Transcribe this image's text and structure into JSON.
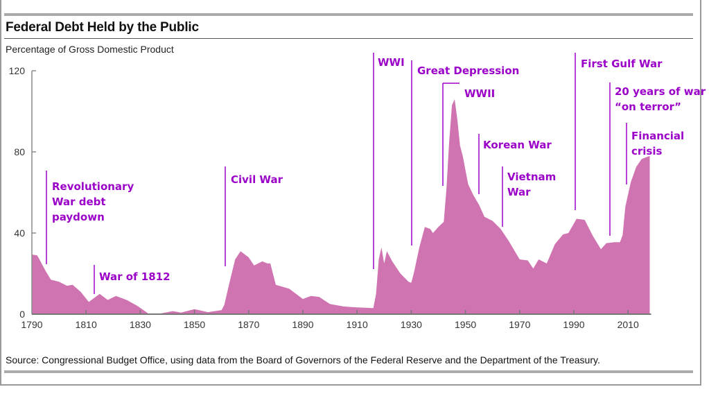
{
  "chart_data": {
    "type": "area",
    "title": "Federal Debt Held by the Public",
    "subtitle": "Percentage of Gross Domestic Product",
    "xlabel": "",
    "ylabel": "Percentage of Gross Domestic Product",
    "xlim": [
      1790,
      2018
    ],
    "ylim": [
      0,
      120
    ],
    "yticks": [
      0,
      40,
      80,
      120
    ],
    "xticks": [
      1790,
      1810,
      1830,
      1850,
      1870,
      1890,
      1910,
      1930,
      1950,
      1970,
      1990,
      2010
    ],
    "grid": false,
    "fill_color": "#cf74b0",
    "annotation_color": "#9b00c8",
    "series": [
      {
        "name": "Federal Debt Held by the Public (% of GDP)",
        "x": [
          1790,
          1792,
          1795,
          1797,
          1800,
          1803,
          1805,
          1808,
          1811,
          1813,
          1815,
          1818,
          1821,
          1825,
          1829,
          1833,
          1837,
          1842,
          1845,
          1850,
          1855,
          1860,
          1861,
          1863,
          1865,
          1867,
          1870,
          1872,
          1875,
          1877,
          1878,
          1880,
          1885,
          1890,
          1893,
          1896,
          1900,
          1905,
          1910,
          1916,
          1917,
          1918,
          1919,
          1920,
          1921,
          1923,
          1926,
          1929,
          1930,
          1931,
          1933,
          1935,
          1937,
          1938,
          1940,
          1942,
          1943,
          1944,
          1945,
          1946,
          1947,
          1948,
          1949,
          1951,
          1953,
          1955,
          1957,
          1960,
          1963,
          1966,
          1970,
          1973,
          1975,
          1977,
          1980,
          1983,
          1986,
          1988,
          1991,
          1994,
          1997,
          2000,
          2002,
          2005,
          2007,
          2008,
          2009,
          2011,
          2013,
          2015,
          2017,
          2018
        ],
        "values": [
          29.4,
          29,
          21.5,
          17,
          16,
          14,
          14.5,
          11,
          6,
          8,
          10,
          7,
          9,
          7,
          4,
          0.3,
          0.2,
          1.5,
          0.8,
          2.5,
          1,
          2,
          4.5,
          16,
          27,
          31,
          28,
          24,
          26,
          25,
          25,
          14.5,
          12.5,
          7.5,
          9,
          8.5,
          5,
          3.8,
          3.3,
          3,
          10,
          27,
          33,
          25,
          31,
          26,
          20,
          16,
          15.5,
          20.5,
          33,
          43,
          42,
          40,
          43,
          45.5,
          62,
          85,
          103,
          106,
          96,
          83,
          78,
          64,
          58.5,
          54,
          48,
          46,
          42,
          36,
          27,
          26.5,
          22.5,
          27,
          25,
          34.5,
          39.3,
          40,
          47,
          46.5,
          38.6,
          32,
          35,
          35.5,
          35.5,
          39,
          53,
          65,
          72.5,
          76.5,
          77.5,
          78
        ]
      }
    ],
    "annotations": [
      {
        "text_lines": [
          "Revolutionary",
          "War debt",
          "paydown"
        ],
        "year": 1795
      },
      {
        "text_lines": [
          "War of 1812"
        ],
        "year": 1812
      },
      {
        "text_lines": [
          "Civil War"
        ],
        "year": 1861
      },
      {
        "text_lines": [
          "WWI"
        ],
        "year": 1917
      },
      {
        "text_lines": [
          "Great Depression"
        ],
        "year": 1930
      },
      {
        "text_lines": [
          "WWII"
        ],
        "year": 1941
      },
      {
        "text_lines": [
          "Korean War"
        ],
        "year": 1955
      },
      {
        "text_lines": [
          "Vietnam",
          "War"
        ],
        "year": 1964
      },
      {
        "text_lines": [
          "First Gulf War"
        ],
        "year": 1990
      },
      {
        "text_lines": [
          "20 years of war",
          "“on terror”"
        ],
        "year": 2003
      },
      {
        "text_lines": [
          "Financial",
          "crisis"
        ],
        "year": 2008
      }
    ],
    "source": "Source: Congressional Budget Office, using data from the Board of Governors of the Federal Reserve and the Department of the Treasury."
  }
}
